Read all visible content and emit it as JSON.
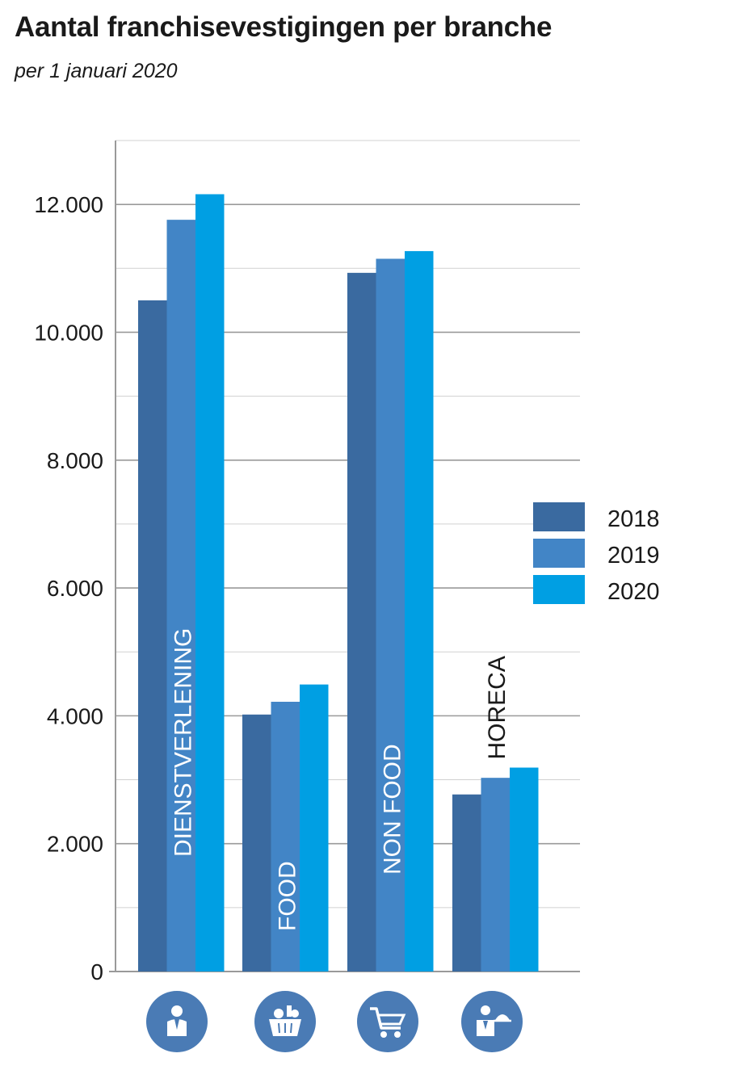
{
  "title": "Aantal franchisevestigingen per branche",
  "subtitle": "per 1 januari 2020",
  "chart_data": {
    "type": "bar",
    "title": "Aantal franchisevestigingen per branche",
    "subtitle": "per 1 januari 2020",
    "xlabel": "",
    "ylabel": "",
    "ylim": [
      0,
      13000
    ],
    "y_ticks": [
      0,
      2000,
      4000,
      6000,
      8000,
      10000,
      12000
    ],
    "y_tick_labels": [
      "0",
      "2.000",
      "4.000",
      "6.000",
      "8.000",
      "10.000",
      "12.000"
    ],
    "minor_grid_step": 1000,
    "grid": true,
    "legend_position": "right",
    "categories": [
      "DIENSTVERLENING",
      "FOOD",
      "NON FOOD",
      "HORECA"
    ],
    "category_icons": [
      "person-suit-icon",
      "grocery-basket-icon",
      "shopping-cart-icon",
      "waiter-cloche-icon"
    ],
    "series": [
      {
        "name": "2018",
        "color": "#3a6aa0",
        "values": [
          10500,
          4020,
          10930,
          2770
        ]
      },
      {
        "name": "2019",
        "color": "#4285c6",
        "values": [
          11760,
          4220,
          11150,
          3030
        ]
      },
      {
        "name": "2020",
        "color": "#009fe3",
        "values": [
          12160,
          4490,
          11270,
          3190
        ]
      }
    ],
    "icon_circle_color": "#4a7bb5"
  }
}
